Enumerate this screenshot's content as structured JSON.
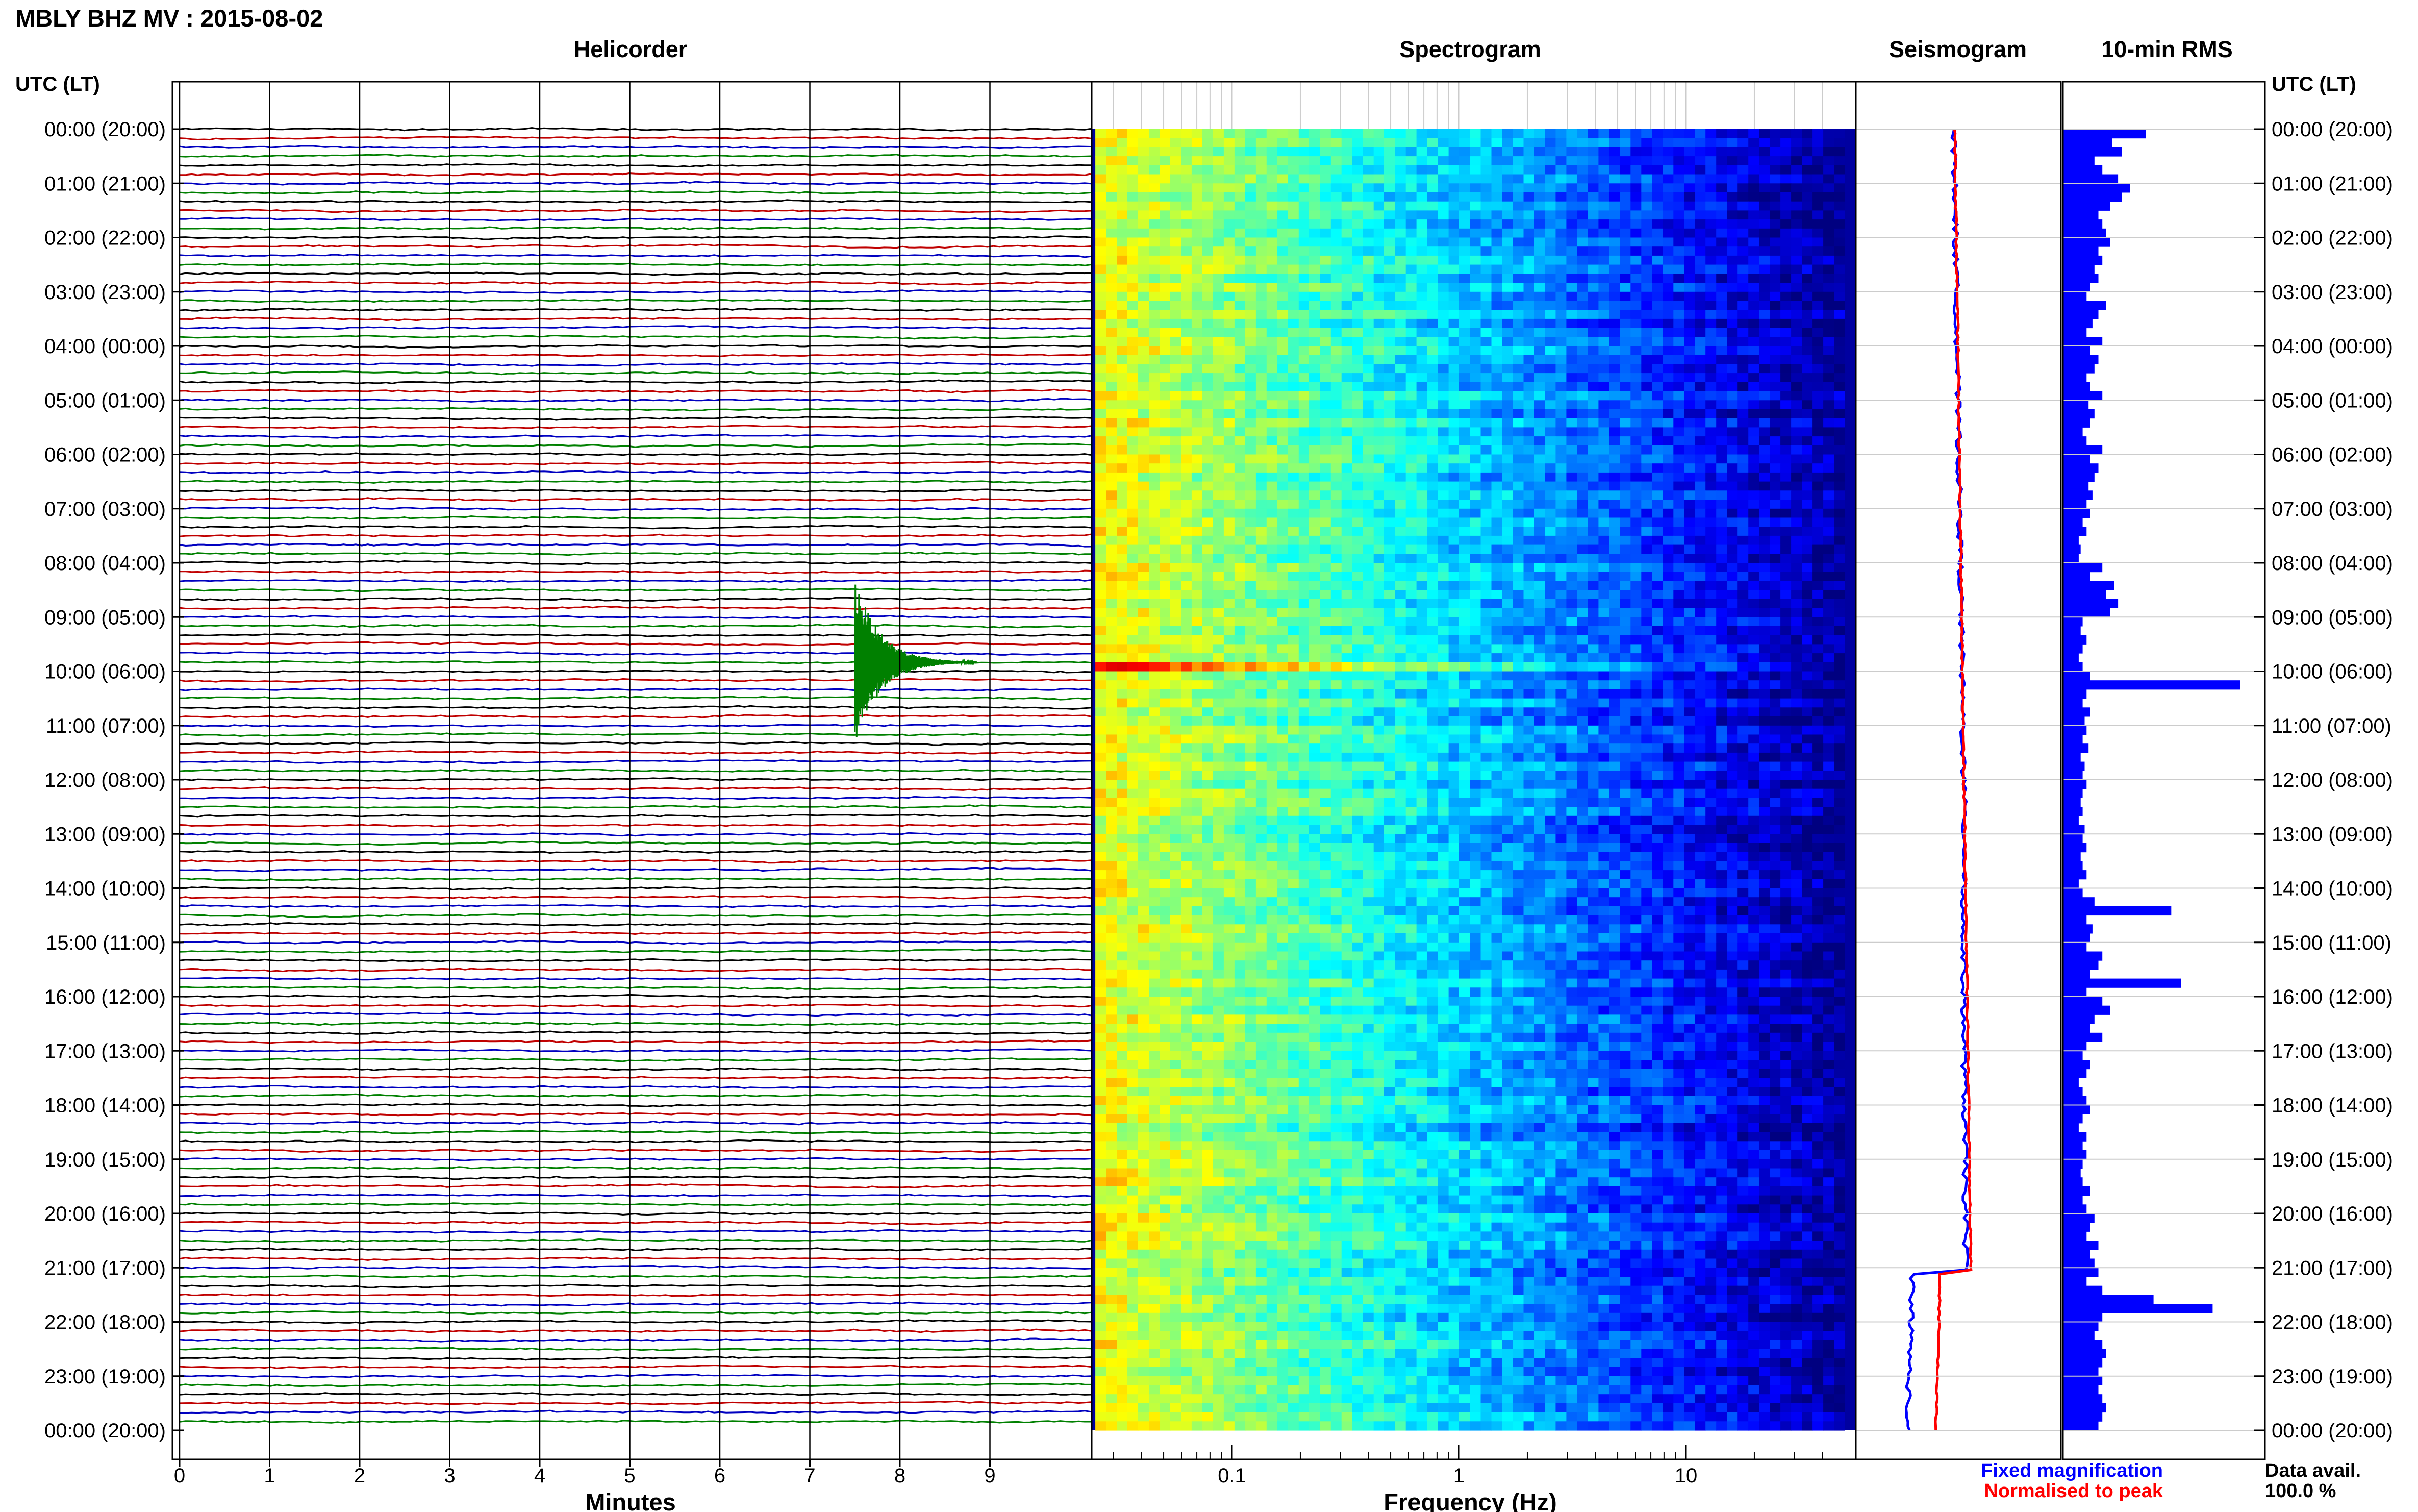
{
  "page": {
    "title": "MBLY BHZ MV : 2015-08-02",
    "utc_lt_label": "UTC (LT)"
  },
  "colors": {
    "trace_cycle": [
      "#000000",
      "#c00000",
      "#0000c0",
      "#008000"
    ],
    "bar_blue": "#0000ff",
    "seismo_blue": "#0000ff",
    "seismo_red": "#ff0000",
    "grid_gray": "#cccccc"
  },
  "chart_data": [
    {
      "id": "helicorder",
      "type": "line",
      "title": "Helicorder",
      "xlabel": "Minutes",
      "ylabel": "",
      "x_ticks": [
        "0",
        "1",
        "2",
        "3",
        "4",
        "5",
        "6",
        "7",
        "8",
        "9"
      ],
      "xlim": [
        0,
        10
      ],
      "y_tick_labels": [
        "00:00 (20:00)",
        "01:00 (21:00)",
        "02:00 (22:00)",
        "03:00 (23:00)",
        "04:00 (00:00)",
        "05:00 (01:00)",
        "06:00 (02:00)",
        "07:00 (03:00)",
        "08:00 (04:00)",
        "09:00 (05:00)",
        "10:00 (06:00)",
        "11:00 (07:00)",
        "12:00 (08:00)",
        "13:00 (09:00)",
        "14:00 (10:00)",
        "15:00 (11:00)",
        "16:00 (12:00)",
        "17:00 (13:00)",
        "18:00 (14:00)",
        "19:00 (15:00)",
        "20:00 (16:00)",
        "21:00 (17:00)",
        "22:00 (18:00)",
        "23:00 (19:00)",
        "00:00 (20:00)"
      ],
      "rows_per_hour": 6,
      "event": {
        "hour": 9,
        "row": 5,
        "minute": 7.5
      }
    },
    {
      "id": "spectrogram",
      "type": "heatmap",
      "title": "Spectrogram",
      "xlabel": "Frequency (Hz)",
      "x_scale": "log",
      "xlim": [
        0.025,
        50
      ],
      "x_ticks": [
        "0.1",
        "1",
        "10"
      ],
      "colormap": "jet"
    },
    {
      "id": "seismogram",
      "type": "line",
      "title": "Seismogram",
      "legend": [
        "Fixed magnification",
        "Normalised to peak"
      ],
      "legend_placement": "bottom"
    },
    {
      "id": "rms",
      "type": "bar",
      "title": "10-min RMS",
      "orientation": "horizontal",
      "values_relative": [
        0.42,
        0.25,
        0.3,
        0.16,
        0.2,
        0.28,
        0.34,
        0.3,
        0.24,
        0.18,
        0.2,
        0.22,
        0.24,
        0.18,
        0.2,
        0.16,
        0.18,
        0.14,
        0.12,
        0.22,
        0.18,
        0.15,
        0.12,
        0.2,
        0.14,
        0.18,
        0.16,
        0.12,
        0.14,
        0.2,
        0.13,
        0.16,
        0.14,
        0.1,
        0.12,
        0.2,
        0.14,
        0.18,
        0.16,
        0.13,
        0.15,
        0.12,
        0.14,
        0.1,
        0.12,
        0.08,
        0.09,
        0.08,
        0.2,
        0.14,
        0.26,
        0.22,
        0.28,
        0.24,
        0.1,
        0.09,
        0.12,
        0.1,
        0.08,
        0.1,
        0.14,
        0.9,
        0.12,
        0.1,
        0.14,
        0.11,
        0.12,
        0.1,
        0.13,
        0.09,
        0.11,
        0.1,
        0.12,
        0.1,
        0.09,
        0.1,
        0.08,
        0.11,
        0.1,
        0.12,
        0.09,
        0.1,
        0.12,
        0.08,
        0.1,
        0.16,
        0.55,
        0.12,
        0.15,
        0.14,
        0.12,
        0.2,
        0.18,
        0.14,
        0.6,
        0.12,
        0.2,
        0.24,
        0.16,
        0.14,
        0.2,
        0.12,
        0.1,
        0.14,
        0.12,
        0.08,
        0.1,
        0.12,
        0.14,
        0.1,
        0.08,
        0.12,
        0.1,
        0.12,
        0.1,
        0.09,
        0.1,
        0.14,
        0.1,
        0.12,
        0.16,
        0.14,
        0.12,
        0.18,
        0.14,
        0.16,
        0.18,
        0.12,
        0.2,
        0.46,
        0.76,
        0.2,
        0.18,
        0.16,
        0.2,
        0.22,
        0.2,
        0.18,
        0.2,
        0.18,
        0.2,
        0.22,
        0.2,
        0.18
      ]
    }
  ],
  "footer": {
    "legend_fixed": "Fixed magnification",
    "legend_normalised": "Normalised to peak",
    "data_avail_label": "Data avail.",
    "data_avail_value": "100.0 %"
  }
}
